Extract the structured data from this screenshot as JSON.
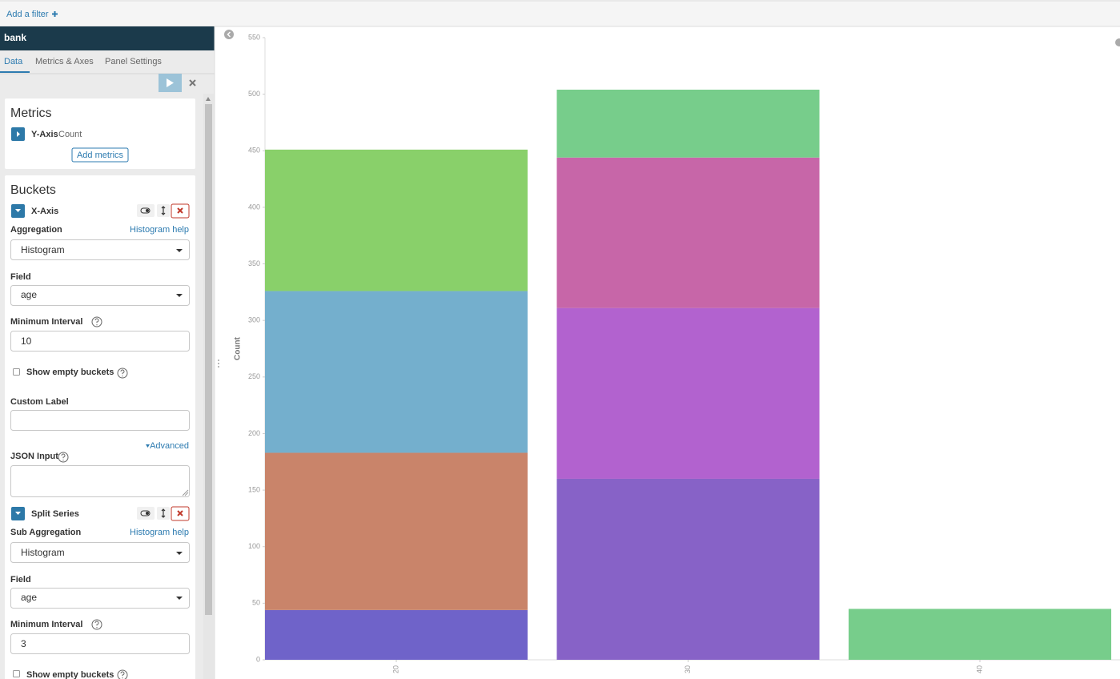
{
  "filter_bar": {
    "add_filter": "Add a filter"
  },
  "sidebar": {
    "index_name": "bank",
    "tabs": [
      "Data",
      "Metrics & Axes",
      "Panel Settings"
    ],
    "metrics": {
      "title": "Metrics",
      "agg_label": "Y-Axis",
      "agg_value": "Count",
      "add_button": "Add metrics"
    },
    "buckets": {
      "title": "Buckets",
      "x_axis": {
        "label": "X-Axis",
        "aggregation_label": "Aggregation",
        "help": "Histogram help",
        "aggregation": "Histogram",
        "field_label": "Field",
        "field": "age",
        "interval_label": "Minimum Interval",
        "interval": 10,
        "empty_label": "Show empty buckets",
        "custom_label": "Custom Label",
        "advanced": "Advanced",
        "json_label": "JSON Input"
      },
      "split_series": {
        "label": "Split Series",
        "aggregation_label": "Sub Aggregation",
        "help": "Histogram help",
        "aggregation": "Histogram",
        "field_label": "Field",
        "field": "age",
        "interval_label": "Minimum Interval",
        "interval": 3,
        "empty_label": "Show empty buckets"
      }
    }
  },
  "chart_data": {
    "type": "bar",
    "stacked": true,
    "y_label": "Count",
    "categories": [
      "20",
      "30",
      "40"
    ],
    "series": [
      {
        "color": "#6f63c9",
        "values": [
          44,
          null,
          null
        ]
      },
      {
        "color": "#c9846a",
        "values": [
          139,
          null,
          null
        ]
      },
      {
        "color": "#74afcd",
        "values": [
          143,
          null,
          null
        ]
      },
      {
        "color": "#89d06a",
        "values": [
          125,
          null,
          null
        ]
      },
      {
        "color": "#8762c7",
        "values": [
          null,
          160,
          null
        ]
      },
      {
        "color": "#b262cf",
        "values": [
          null,
          151,
          null
        ]
      },
      {
        "color": "#c766a8",
        "values": [
          null,
          133,
          null
        ]
      },
      {
        "color": "#77cd8b",
        "values": [
          null,
          60,
          45
        ]
      }
    ],
    "ylim": [
      0,
      550
    ],
    "yticks": [
      0,
      50,
      100,
      150,
      200,
      250,
      300,
      350,
      400,
      450,
      500,
      550
    ],
    "grid": false
  }
}
